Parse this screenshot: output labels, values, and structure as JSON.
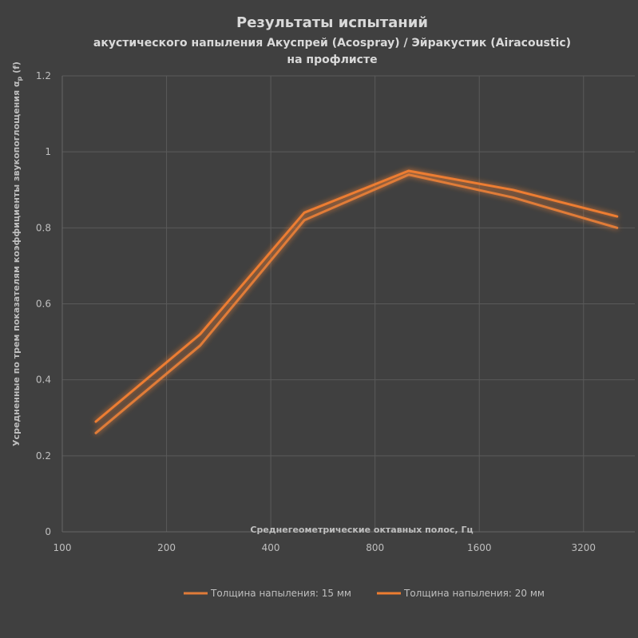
{
  "chart_data": {
    "type": "line",
    "title": "Результаты испытаний",
    "subtitle_lines": [
      "акустического напыления Акуспрей (Acospray) / Эйракустик (Airacoustic)",
      "на профлисте"
    ],
    "xlabel": "Среднегеометрические октавных полос, Гц",
    "ylabel": "Усредненные по трем показателям коэффициенты звукопоглощения α",
    "ylabel_sub": "p",
    "ylabel_suffix": " (f)",
    "x_scale": "log2",
    "xlim": [
      100,
      4500
    ],
    "x_ticks": [
      100,
      200,
      400,
      800,
      1600,
      3200
    ],
    "x_tick_labels": [
      "100",
      "200",
      "400",
      "800",
      "1600",
      "3200"
    ],
    "ylim": [
      0,
      1.2
    ],
    "y_ticks": [
      0,
      0.2,
      0.4,
      0.6,
      0.8,
      1,
      1.2
    ],
    "y_tick_labels": [
      "0",
      "0.2",
      "0.4",
      "0.6",
      "0.8",
      "1",
      "1.2"
    ],
    "grid": true,
    "legend_position": "bottom",
    "x": [
      125,
      250,
      500,
      1000,
      2000,
      4000
    ],
    "series": [
      {
        "name": "Толщина напыления: 15 мм",
        "values": [
          0.26,
          0.49,
          0.82,
          0.94,
          0.88,
          0.8
        ],
        "color": "#e07b39"
      },
      {
        "name": "Толщина напыления: 20 мм",
        "values": [
          0.29,
          0.52,
          0.84,
          0.95,
          0.9,
          0.83
        ],
        "color": "#ed7d31"
      }
    ]
  }
}
